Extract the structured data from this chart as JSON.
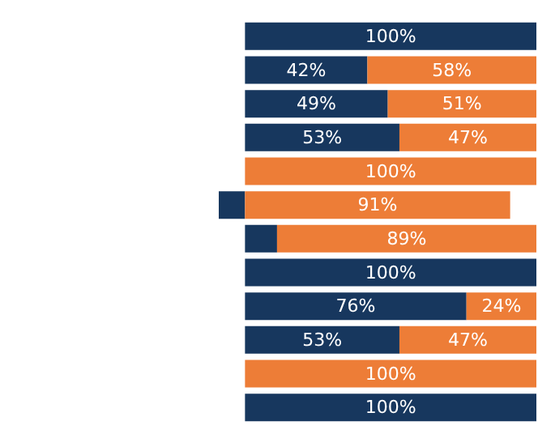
{
  "chart_data": {
    "type": "bar",
    "orientation": "horizontal",
    "stacked": true,
    "relative": false,
    "categories": [
      null,
      null,
      null,
      null,
      null,
      null,
      null,
      null,
      null,
      null,
      null,
      null
    ],
    "xlim": [
      -9,
      100
    ],
    "tick_labels": false,
    "series": [
      {
        "color": "#17375e",
        "values": [
          100,
          42,
          49,
          53,
          0,
          -9,
          11,
          100,
          76,
          53,
          0,
          100
        ],
        "value_labels": [
          "100%",
          "42%",
          "49%",
          "53%",
          null,
          null,
          null,
          "100%",
          "76%",
          "53%",
          null,
          "100%"
        ]
      },
      {
        "color": "#ed7d37",
        "values": [
          0,
          58,
          51,
          47,
          100,
          91,
          89,
          0,
          24,
          47,
          100,
          0
        ],
        "value_labels": [
          null,
          "58%",
          "51%",
          "47%",
          "100%",
          "91%",
          "89%",
          null,
          "24%",
          "47%",
          "100%",
          null
        ]
      }
    ]
  }
}
